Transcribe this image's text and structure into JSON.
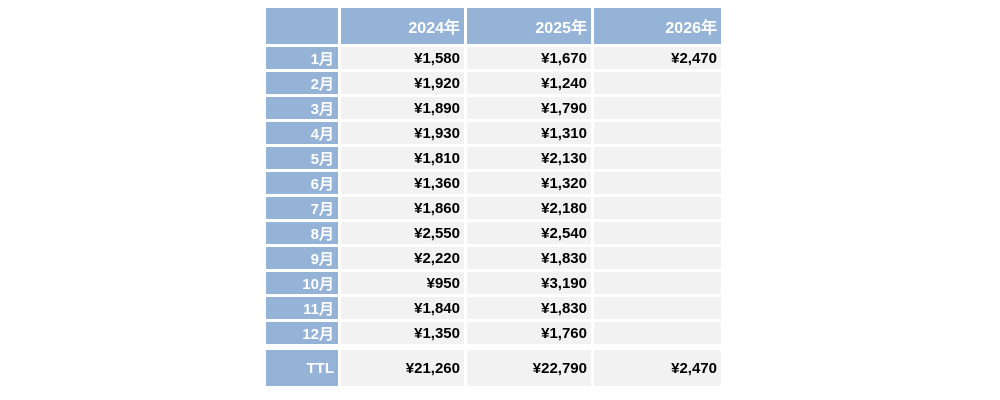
{
  "table": {
    "corner_label": "",
    "columns": [
      "2024年",
      "2025年",
      "2026年"
    ],
    "rows": [
      {
        "label": "1月",
        "values": [
          "¥1,580",
          "¥1,670",
          "¥2,470"
        ]
      },
      {
        "label": "2月",
        "values": [
          "¥1,920",
          "¥1,240",
          ""
        ]
      },
      {
        "label": "3月",
        "values": [
          "¥1,890",
          "¥1,790",
          ""
        ]
      },
      {
        "label": "4月",
        "values": [
          "¥1,930",
          "¥1,310",
          ""
        ]
      },
      {
        "label": "5月",
        "values": [
          "¥1,810",
          "¥2,130",
          ""
        ]
      },
      {
        "label": "6月",
        "values": [
          "¥1,360",
          "¥1,320",
          ""
        ]
      },
      {
        "label": "7月",
        "values": [
          "¥1,860",
          "¥2,180",
          ""
        ]
      },
      {
        "label": "8月",
        "values": [
          "¥2,550",
          "¥2,540",
          ""
        ]
      },
      {
        "label": "9月",
        "values": [
          "¥2,220",
          "¥1,830",
          ""
        ]
      },
      {
        "label": "10月",
        "values": [
          "¥950",
          "¥3,190",
          ""
        ]
      },
      {
        "label": "11月",
        "values": [
          "¥1,840",
          "¥1,830",
          ""
        ]
      },
      {
        "label": "12月",
        "values": [
          "¥1,350",
          "¥1,760",
          ""
        ]
      }
    ],
    "total_row": {
      "label": "TTL",
      "values": [
        "¥21,260",
        "¥22,790",
        "¥2,470"
      ]
    }
  },
  "colors": {
    "header_bg": "#95B3D7",
    "cell_bg": "#F2F2F2",
    "header_text": "#FFFFFF",
    "value_text": "#000000",
    "page_bg": "#FFFFFF"
  },
  "chart_data": {
    "type": "table",
    "title": "",
    "categories": [
      "1月",
      "2月",
      "3月",
      "4月",
      "5月",
      "6月",
      "7月",
      "8月",
      "9月",
      "10月",
      "11月",
      "12月"
    ],
    "series": [
      {
        "name": "2024年",
        "values": [
          1580,
          1920,
          1890,
          1930,
          1810,
          1360,
          1860,
          2550,
          2220,
          950,
          1840,
          1350
        ]
      },
      {
        "name": "2025年",
        "values": [
          1670,
          1240,
          1790,
          1310,
          2130,
          1320,
          2180,
          2540,
          1830,
          3190,
          1830,
          1760
        ]
      },
      {
        "name": "2026年",
        "values": [
          2470,
          null,
          null,
          null,
          null,
          null,
          null,
          null,
          null,
          null,
          null,
          null
        ]
      }
    ],
    "totals": {
      "label": "TTL",
      "2024年": 21260,
      "2025年": 22790,
      "2026年": 2470
    },
    "currency": "¥",
    "layout": "months as rows, years as columns, totals row at bottom"
  }
}
